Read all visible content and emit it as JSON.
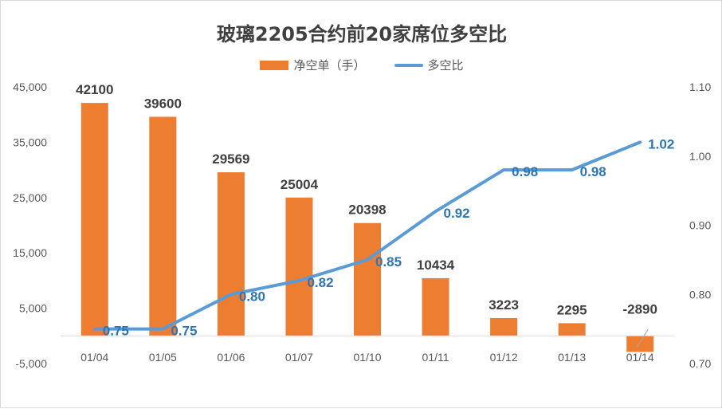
{
  "chart_data": {
    "type": "bar",
    "title": "玻璃2205合约前20家席位多空比",
    "categories": [
      "01/04",
      "01/05",
      "01/06",
      "01/07",
      "01/10",
      "01/11",
      "01/12",
      "01/13",
      "01/14"
    ],
    "series": [
      {
        "name": "净空单（手）",
        "type": "bar",
        "axis": "left",
        "color": "#ed7d31",
        "values": [
          42100,
          39600,
          29569,
          25004,
          20398,
          10434,
          3223,
          2295,
          -2890
        ],
        "labels": [
          "42100",
          "39600",
          "29569",
          "25004",
          "20398",
          "10434",
          "3223",
          "2295",
          "-2890"
        ]
      },
      {
        "name": "多空比",
        "type": "line",
        "axis": "right",
        "color": "#5b9bd5",
        "values": [
          0.75,
          0.75,
          0.8,
          0.82,
          0.85,
          0.92,
          0.98,
          0.98,
          1.02
        ],
        "labels": [
          "0.75",
          "0.75",
          "0.80",
          "0.82",
          "0.85",
          "0.92",
          "0.98",
          "0.98",
          "1.02"
        ]
      }
    ],
    "y_left": {
      "ylim": [
        -5000,
        45000
      ],
      "ticks": [
        -5000,
        5000,
        15000,
        25000,
        35000,
        45000
      ],
      "tick_labels": [
        "-5,000",
        "5,000",
        "15,000",
        "25,000",
        "35,000",
        "45,000"
      ]
    },
    "y_right": {
      "ylim": [
        0.7,
        1.1
      ],
      "ticks": [
        0.7,
        0.8,
        0.9,
        1.0,
        1.1
      ],
      "tick_labels": [
        "0.70",
        "0.80",
        "0.90",
        "1.00",
        "1.10"
      ]
    },
    "grid": false,
    "legend": "top-center"
  }
}
